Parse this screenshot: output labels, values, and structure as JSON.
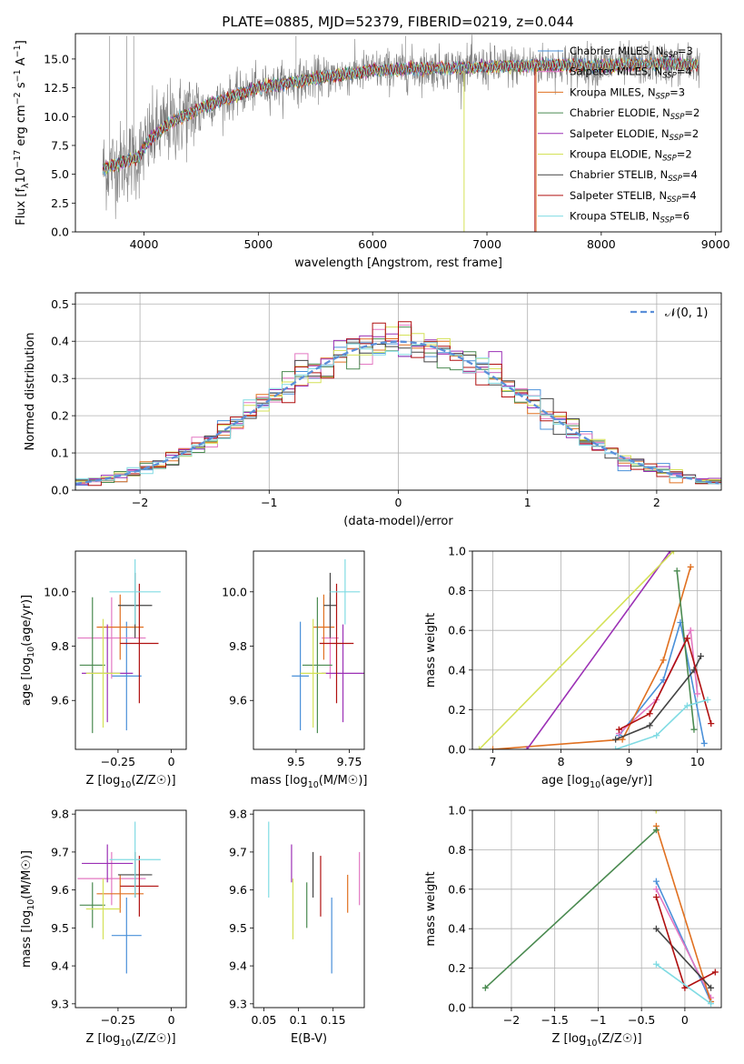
{
  "figure_title": "PLATE=0885, MJD=52379, FIBERID=0219, z=0.044",
  "colors": {
    "Chabrier MILES": "#4a90d9",
    "Salpeter MILES": "#e377c2",
    "Kroupa MILES": "#e07020",
    "Chabrier ELODIE": "#4a8a50",
    "Salpeter ELODIE": "#9b30b5",
    "Kroupa ELODIE": "#d4e157",
    "Chabrier STELIB": "#444444",
    "Salpeter STELIB": "#b01010",
    "Kroupa STELIB": "#80dbe3",
    "data": "#7f7f7f",
    "gauss": "#5b8fd9"
  },
  "chart_data": [
    {
      "id": "spectrum",
      "type": "line",
      "title": "PLATE=0885, MJD=52379, FIBERID=0219, z=0.044",
      "xlabel": "wavelength [Angstrom, rest frame]",
      "ylabel": "Flux [f_λ10^-17 erg cm^-2 s^-1 A^-1]",
      "xlim": [
        3400,
        9050
      ],
      "ylim": [
        0,
        17.2
      ],
      "xticks": [
        4000,
        5000,
        6000,
        7000,
        8000,
        9000
      ],
      "yticks": [
        0.0,
        2.5,
        5.0,
        7.5,
        10.0,
        12.5,
        15.0
      ],
      "ytick_labels": [
        "0.0",
        "2.5",
        "5.0",
        "7.5",
        "10.0",
        "12.5",
        "15.0"
      ],
      "legend_position": "upper-right",
      "legend": [
        {
          "name": "Chabrier MILES",
          "nssp": "3"
        },
        {
          "name": "Salpeter MILES",
          "nssp": "4"
        },
        {
          "name": "Kroupa MILES",
          "nssp": "3"
        },
        {
          "name": "Chabrier ELODIE",
          "nssp": "2"
        },
        {
          "name": "Salpeter ELODIE",
          "nssp": "2"
        },
        {
          "name": "Kroupa ELODIE",
          "nssp": "2"
        },
        {
          "name": "Chabrier STELIB",
          "nssp": "4"
        },
        {
          "name": "Salpeter STELIB",
          "nssp": "4"
        },
        {
          "name": "Kroupa STELIB",
          "nssp": "6"
        }
      ],
      "continuum": [
        [
          3650,
          5.5
        ],
        [
          3800,
          6.0
        ],
        [
          3950,
          6.5
        ],
        [
          4050,
          8.0
        ],
        [
          4200,
          9.3
        ],
        [
          4500,
          10.8
        ],
        [
          5000,
          12.5
        ],
        [
          5500,
          13.3
        ],
        [
          6000,
          14.0
        ],
        [
          6500,
          14.2
        ],
        [
          7000,
          14.3
        ],
        [
          7500,
          14.5
        ],
        [
          8000,
          14.4
        ],
        [
          8500,
          14.6
        ],
        [
          8850,
          14.5
        ]
      ],
      "data_range": [
        3640,
        8860
      ],
      "model_range": [
        3640,
        8850
      ]
    },
    {
      "id": "residuals",
      "type": "histogram",
      "xlabel": "(data-model)/error",
      "ylabel": "Normed distribution",
      "xlim": [
        -2.5,
        2.5
      ],
      "ylim": [
        0,
        0.53
      ],
      "xticks": [
        -2,
        -1,
        0,
        1,
        2
      ],
      "yticks": [
        0.0,
        0.1,
        0.2,
        0.3,
        0.4,
        0.5
      ],
      "bin_width": 0.1,
      "legend_position": "upper-right",
      "gauss_label": "𝒩(0, 1)"
    },
    {
      "id": "age_vs_Z",
      "type": "scatter",
      "xlabel": "Z [log10(Z/Z☉)]",
      "ylabel": "age [log10(age/yr)]",
      "xlim": [
        -0.45,
        0.07
      ],
      "ylim": [
        9.42,
        10.15
      ],
      "xticks": [
        -0.25,
        0.0
      ],
      "yticks": [
        9.6,
        9.8,
        10.0
      ]
    },
    {
      "id": "age_vs_mass",
      "type": "scatter",
      "xlabel": "mass [log10(M/M☉)]",
      "ylabel": "",
      "xlim": [
        9.3,
        9.82
      ],
      "ylim": [
        9.42,
        10.15
      ],
      "xticks": [
        9.5,
        9.75
      ],
      "yticks": [
        9.6,
        9.8,
        10.0
      ]
    },
    {
      "id": "weight_vs_age",
      "type": "line",
      "xlabel": "age [log10(age/yr)]",
      "ylabel": "mass weight",
      "xlim": [
        6.7,
        10.35
      ],
      "ylim": [
        0,
        1.0
      ],
      "xticks": [
        7,
        8,
        9,
        10
      ],
      "yticks": [
        0.0,
        0.2,
        0.4,
        0.6,
        0.8,
        1.0
      ]
    },
    {
      "id": "mass_vs_Z",
      "type": "scatter",
      "xlabel": "Z [log10(Z/Z☉)]",
      "ylabel": "mass [log10(M/M☉)]",
      "xlim": [
        -0.45,
        0.07
      ],
      "ylim": [
        9.29,
        9.81
      ],
      "xticks": [
        -0.25,
        0.0
      ],
      "yticks": [
        9.3,
        9.4,
        9.5,
        9.6,
        9.7,
        9.8
      ]
    },
    {
      "id": "mass_vs_ebv",
      "type": "scatter",
      "xlabel": "E(B-V)",
      "ylabel": "",
      "xlim": [
        0.035,
        0.195
      ],
      "ylim": [
        9.29,
        9.81
      ],
      "xticks": [
        0.05,
        0.1,
        0.15
      ],
      "yticks": [
        9.3,
        9.4,
        9.5,
        9.6,
        9.7,
        9.8
      ]
    },
    {
      "id": "weight_vs_Z",
      "type": "line",
      "xlabel": "Z [log10(Z/Z☉)]",
      "ylabel": "mass weight",
      "xlim": [
        -2.45,
        0.42
      ],
      "ylim": [
        0,
        1.0
      ],
      "xticks": [
        -2.0,
        -1.5,
        -1.0,
        -0.5,
        0.0
      ],
      "yticks": [
        0.0,
        0.2,
        0.4,
        0.6,
        0.8,
        1.0
      ]
    }
  ],
  "models": [
    {
      "name": "Chabrier MILES",
      "Z": [
        -0.21,
        0.07
      ],
      "age": [
        9.69,
        0.2
      ],
      "mass": [
        9.52,
        0.04
      ],
      "logM": [
        9.48,
        0.1
      ],
      "ebv": [
        0.148,
        0.05
      ],
      "w_age": [
        [
          8.85,
          0.07
        ],
        [
          9.5,
          0.35
        ],
        [
          9.75,
          0.64
        ],
        [
          10.1,
          0.03
        ]
      ],
      "w_Z": [
        [
          -0.33,
          0.64
        ],
        [
          0.3,
          0.03
        ]
      ]
    },
    {
      "name": "Salpeter MILES",
      "Z": [
        -0.28,
        0.16
      ],
      "age": [
        9.83,
        0.15
      ],
      "mass": [
        9.66,
        0.04
      ],
      "logM": [
        9.63,
        0.07
      ],
      "ebv": [
        0.188,
        0.07
      ],
      "w_age": [
        [
          8.85,
          0.08
        ],
        [
          9.4,
          0.25
        ],
        [
          9.9,
          0.6
        ],
        [
          10.0,
          0.28
        ]
      ],
      "w_Z": [
        [
          -0.33,
          0.6
        ],
        [
          0.3,
          0.05
        ]
      ]
    },
    {
      "name": "Kroupa MILES",
      "Z": [
        -0.24,
        0.11
      ],
      "age": [
        9.87,
        0.12
      ],
      "mass": [
        9.63,
        0.05
      ],
      "logM": [
        9.59,
        0.05
      ],
      "ebv": [
        0.171,
        0.06
      ],
      "w_age": [
        [
          7.0,
          0.0
        ],
        [
          8.9,
          0.05
        ],
        [
          9.5,
          0.45
        ],
        [
          9.9,
          0.92
        ]
      ],
      "w_Z": [
        [
          -0.33,
          0.92
        ],
        [
          0.3,
          0.03
        ]
      ]
    },
    {
      "name": "Chabrier ELODIE",
      "Z": [
        -0.37,
        0.06
      ],
      "age": [
        9.73,
        0.25
      ],
      "mass": [
        9.6,
        0.07
      ],
      "logM": [
        9.56,
        0.06
      ],
      "ebv": [
        0.112,
        0.07
      ],
      "w_age": [
        [
          9.7,
          0.9
        ],
        [
          9.95,
          0.1
        ]
      ],
      "w_Z": [
        [
          -2.3,
          0.1
        ],
        [
          -0.33,
          0.9
        ]
      ]
    },
    {
      "name": "Salpeter ELODIE",
      "Z": [
        -0.3,
        0.12
      ],
      "age": [
        9.7,
        0.18
      ],
      "mass": [
        9.72,
        0.1
      ],
      "logM": [
        9.67,
        0.05
      ],
      "ebv": [
        0.09,
        0.07
      ],
      "w_age": [
        [
          7.5,
          0.0
        ],
        [
          9.6,
          1.0
        ]
      ],
      "w_Z": [
        [
          -0.33,
          1.0
        ]
      ]
    },
    {
      "name": "Kroupa ELODIE",
      "Z": [
        -0.32,
        0.08
      ],
      "age": [
        9.7,
        0.2
      ],
      "mass": [
        9.58,
        0.06
      ],
      "logM": [
        9.55,
        0.08
      ],
      "ebv": [
        0.092,
        0.1
      ],
      "w_age": [
        [
          6.8,
          0.0
        ],
        [
          9.65,
          1.0
        ]
      ],
      "w_Z": [
        [
          -0.33,
          1.0
        ]
      ]
    },
    {
      "name": "Chabrier STELIB",
      "Z": [
        -0.17,
        0.08
      ],
      "age": [
        9.95,
        0.12
      ],
      "mass": [
        9.66,
        0.03
      ],
      "logM": [
        9.64,
        0.06
      ],
      "ebv": [
        0.121,
        0.1
      ],
      "w_age": [
        [
          8.8,
          0.05
        ],
        [
          9.3,
          0.12
        ],
        [
          9.95,
          0.4
        ],
        [
          10.05,
          0.47
        ]
      ],
      "w_Z": [
        [
          -0.33,
          0.4
        ],
        [
          0.3,
          0.1
        ]
      ]
    },
    {
      "name": "Salpeter STELIB",
      "Z": [
        -0.15,
        0.09
      ],
      "age": [
        9.81,
        0.22
      ],
      "mass": [
        9.69,
        0.08
      ],
      "logM": [
        9.61,
        0.08
      ],
      "ebv": [
        0.132,
        0.07
      ],
      "w_age": [
        [
          8.85,
          0.1
        ],
        [
          9.3,
          0.18
        ],
        [
          9.85,
          0.56
        ],
        [
          10.2,
          0.13
        ]
      ],
      "w_Z": [
        [
          -0.33,
          0.56
        ],
        [
          0.0,
          0.1
        ],
        [
          0.35,
          0.18
        ]
      ]
    },
    {
      "name": "Kroupa STELIB",
      "Z": [
        -0.17,
        0.12
      ],
      "age": [
        10.0,
        0.12
      ],
      "mass": [
        9.73,
        0.07
      ],
      "logM": [
        9.68,
        0.1
      ],
      "ebv": [
        0.057,
        0.1
      ],
      "w_age": [
        [
          8.8,
          0.0
        ],
        [
          9.4,
          0.07
        ],
        [
          9.85,
          0.22
        ],
        [
          10.15,
          0.25
        ]
      ],
      "w_Z": [
        [
          -0.33,
          0.22
        ],
        [
          0.3,
          0.02
        ]
      ]
    }
  ]
}
